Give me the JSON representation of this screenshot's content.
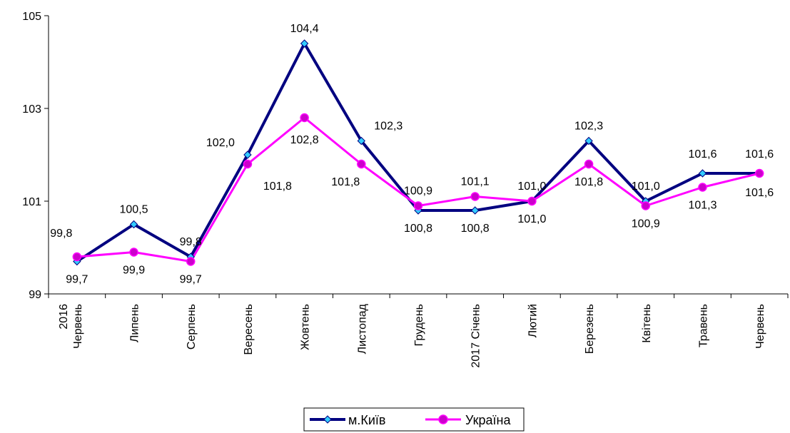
{
  "chart_data": {
    "type": "line",
    "title": "",
    "xlabel": "",
    "ylabel": "",
    "ylim": [
      99,
      105
    ],
    "yticks": [
      99,
      101,
      103,
      105
    ],
    "categories": [
      [
        "2016",
        "Червень"
      ],
      [
        "Липень"
      ],
      [
        "Серпень"
      ],
      [
        "Вересень"
      ],
      [
        "Жовтень"
      ],
      [
        "Листопад"
      ],
      [
        "Грудень"
      ],
      [
        "2017 Січень"
      ],
      [
        "Лютий"
      ],
      [
        "Березень"
      ],
      [
        "Квітень"
      ],
      [
        "Травень"
      ],
      [
        "Червень"
      ]
    ],
    "series": [
      {
        "name": "м.Київ",
        "color": "#000080",
        "marker": "diamond",
        "marker_color": "#33ccff",
        "values": [
          99.7,
          100.5,
          99.8,
          102.0,
          104.4,
          102.3,
          100.8,
          100.8,
          101.0,
          102.3,
          101.0,
          101.6,
          101.6
        ],
        "labels": [
          "99,7",
          "100,5",
          "99,8",
          "102,0",
          "104,4",
          "102,3",
          "100,8",
          "100,8",
          "101,0",
          "102,3",
          "101,0",
          "101,6",
          "101,6"
        ]
      },
      {
        "name": "Україна",
        "color": "#ff00ff",
        "marker": "circle",
        "marker_color": "#cc00cc",
        "values": [
          99.8,
          99.9,
          99.7,
          101.8,
          102.8,
          101.8,
          100.9,
          101.1,
          101.0,
          101.8,
          100.9,
          101.3,
          101.6
        ],
        "labels": [
          "99,8",
          "99,9",
          "99,7",
          "101,8",
          "102,8",
          "101,8",
          "100,9",
          "101,1",
          "101,0",
          "101,8",
          "100,9",
          "101,3",
          "101,6"
        ]
      }
    ],
    "grid": false,
    "legend": "bottom"
  }
}
